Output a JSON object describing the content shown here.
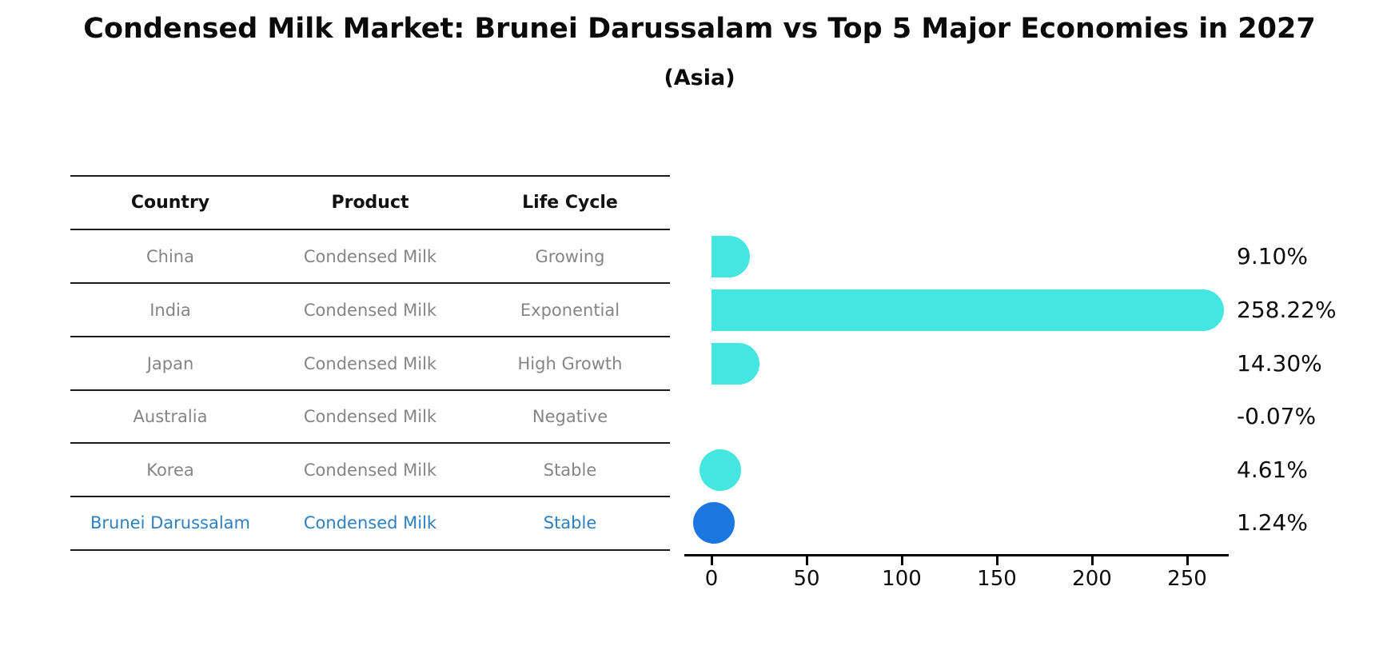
{
  "title": "Condensed Milk Market: Brunei Darussalam vs Top 5 Major Economies in 2027",
  "subtitle": "(Asia)",
  "table": {
    "columns": [
      "Country",
      "Product",
      "Life Cycle"
    ],
    "rows": [
      {
        "country": "China",
        "product": "Condensed Milk",
        "life_cycle": "Growing",
        "highlight": false
      },
      {
        "country": "India",
        "product": "Condensed Milk",
        "life_cycle": "Exponential",
        "highlight": false
      },
      {
        "country": "Japan",
        "product": "Condensed Milk",
        "life_cycle": "High Growth",
        "highlight": false
      },
      {
        "country": "Australia",
        "product": "Condensed Milk",
        "life_cycle": "Negative",
        "highlight": false
      },
      {
        "country": "Korea",
        "product": "Condensed Milk",
        "life_cycle": "Stable",
        "highlight": false
      },
      {
        "country": "Brunei Darussalam",
        "product": "Condensed Milk",
        "life_cycle": "Stable",
        "highlight": true
      }
    ]
  },
  "chart_data": {
    "type": "bar",
    "orientation": "horizontal",
    "categories": [
      "China",
      "India",
      "Japan",
      "Australia",
      "Korea",
      "Brunei Darussalam"
    ],
    "values": [
      9.1,
      258.22,
      14.3,
      -0.07,
      4.61,
      1.24
    ],
    "value_labels": [
      "9.10%",
      "258.22%",
      "14.30%",
      "-0.07%",
      "4.61%",
      "1.24%"
    ],
    "highlight_category": "Brunei Darussalam",
    "x_ticks": [
      "0",
      "50",
      "100",
      "150",
      "200",
      "250"
    ],
    "x_tick_values": [
      0,
      50,
      100,
      150,
      200,
      250
    ],
    "xlim": [
      0,
      270
    ],
    "grid": false,
    "legend": false,
    "xlabel": "",
    "ylabel": "",
    "colors": {
      "bar": "#45E6DF",
      "highlight_bar": "#1B76DF",
      "highlight_text": "#2F7FC1",
      "row_text": "#858585",
      "header_text": "#111111",
      "axis": "#000000"
    }
  }
}
